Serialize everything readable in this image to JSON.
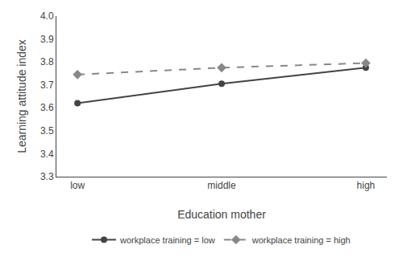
{
  "chart_data": {
    "type": "line",
    "xlabel": "Education mother",
    "ylabel": "Learning attitude index",
    "categories": [
      "low",
      "middle",
      "high"
    ],
    "series": [
      {
        "name": "workplace training = low",
        "color": "#444444",
        "values": [
          3.62,
          3.705,
          3.775
        ],
        "marker": "circle",
        "line_style": "solid"
      },
      {
        "name": "workplace training = high",
        "color": "#888888",
        "values": [
          3.745,
          3.775,
          3.795
        ],
        "marker": "diamond",
        "line_style": "dashed"
      }
    ],
    "ylim": [
      3.3,
      4.0
    ],
    "yticks": [
      3.3,
      3.4,
      3.5,
      3.6,
      3.7,
      3.8,
      3.9,
      {
        "value": 4.0,
        "label": "4.0"
      }
    ],
    "grid": false,
    "legend": "bottom"
  }
}
